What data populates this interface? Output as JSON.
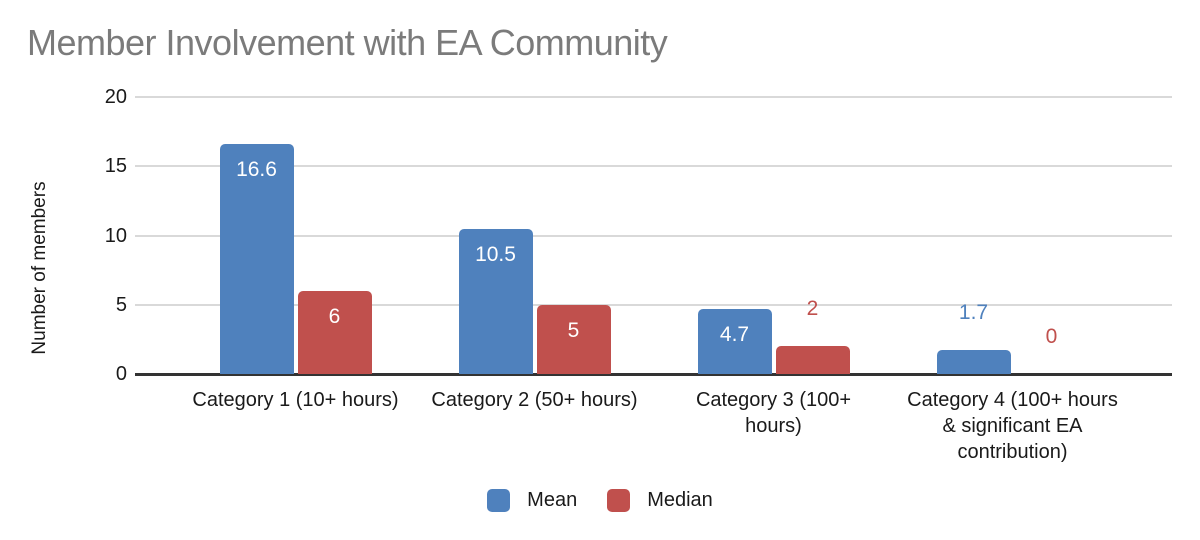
{
  "chart_data": {
    "type": "bar",
    "title": "Member Involvement with EA Community",
    "xlabel": "",
    "ylabel": "Number of members",
    "ylim": [
      0,
      20
    ],
    "yticks": [
      0,
      5,
      10,
      15,
      20
    ],
    "grid": true,
    "legend_position": "bottom",
    "categories": [
      "Category 1 (10+ hours)",
      "Category 2 (50+ hours)",
      "Category 3 (100+ hours)",
      "Category 4 (100+ hours & significant EA contribution)"
    ],
    "category_label_lines": [
      [
        "Category 1 (10+ hours)"
      ],
      [
        "Category 2 (50+ hours)"
      ],
      [
        "Category 3 (100+",
        "hours)"
      ],
      [
        "Category 4 (100+ hours",
        "& significant EA",
        "contribution)"
      ]
    ],
    "series": [
      {
        "name": "Mean",
        "color": "#4F81BD",
        "values": [
          16.6,
          10.5,
          4.7,
          1.7
        ],
        "value_labels": [
          "16.6",
          "10.5",
          "4.7",
          "1.7"
        ]
      },
      {
        "name": "Median",
        "color": "#C0504D",
        "values": [
          6,
          5,
          2,
          0
        ],
        "value_labels": [
          "6",
          "5",
          "2",
          "0"
        ]
      }
    ],
    "colors": {
      "title_text": "#7b7b7b",
      "axis_text": "#1a1a1a",
      "gridline": "#d9d9d9",
      "axis_line": "#333333",
      "inside_label_text": "#ffffff",
      "background": "#ffffff"
    }
  }
}
